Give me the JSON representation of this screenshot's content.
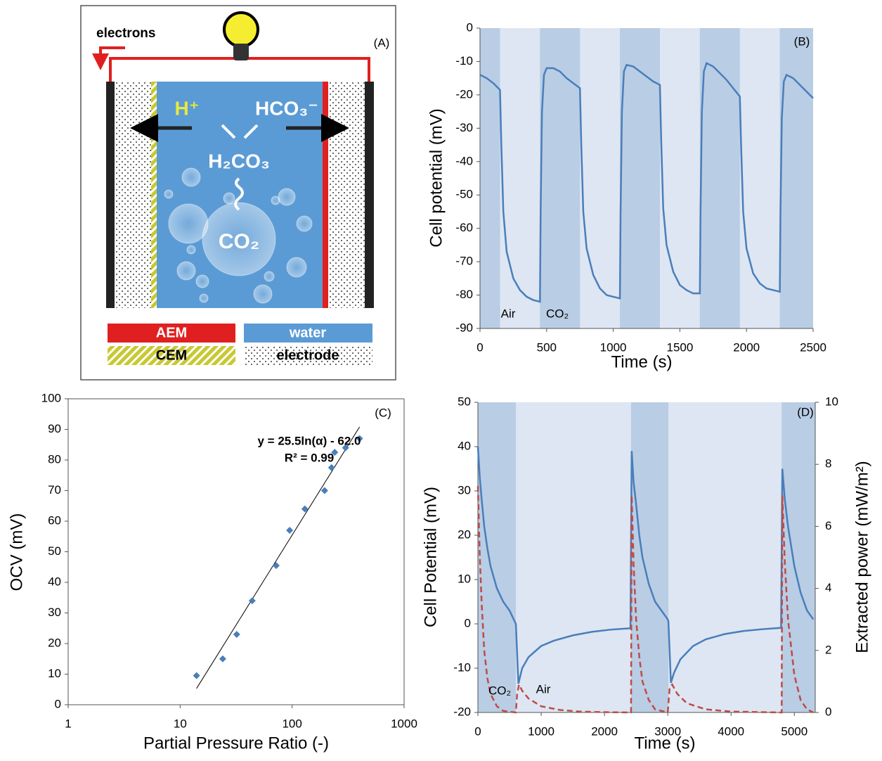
{
  "diagram": {
    "panel_label": "(A)",
    "electrons": "electrons",
    "proton": "H⁺",
    "bicarbonate": "HCO₃⁻",
    "carbonic_acid": "H₂CO₃",
    "co2": "CO₂",
    "legend": [
      "AEM",
      "water",
      "CEM",
      "electrode"
    ]
  },
  "chart_data": [
    {
      "type": "line",
      "panel_label": "(B)",
      "ylabel": "Cell potential (mV)",
      "xlabel": "Time (s)",
      "color": "#4a7ebb",
      "background": "#dde6f2",
      "shade_color": "#b9cde4",
      "shaded_ranges": [
        [
          0,
          150
        ],
        [
          450,
          750
        ],
        [
          1050,
          1350
        ],
        [
          1650,
          1950
        ],
        [
          2250,
          2500
        ]
      ],
      "annotations": [
        "Air",
        "CO₂"
      ],
      "xlim": [
        0,
        2500
      ],
      "xticks": [
        0,
        500,
        1000,
        1500,
        2000,
        2500
      ],
      "ylim": [
        -90,
        0
      ],
      "yticks": [
        -90,
        -80,
        -70,
        -60,
        -50,
        -40,
        -30,
        -20,
        -10,
        0
      ],
      "x": [
        0,
        50,
        100,
        150,
        160,
        175,
        200,
        250,
        300,
        350,
        400,
        450,
        455,
        465,
        480,
        500,
        550,
        600,
        650,
        700,
        750,
        760,
        775,
        800,
        850,
        900,
        950,
        1000,
        1050,
        1055,
        1065,
        1080,
        1100,
        1150,
        1200,
        1250,
        1300,
        1350,
        1360,
        1375,
        1400,
        1450,
        1500,
        1550,
        1600,
        1650,
        1655,
        1665,
        1680,
        1700,
        1750,
        1800,
        1850,
        1900,
        1950,
        1960,
        1975,
        2000,
        2050,
        2100,
        2150,
        2200,
        2250,
        2255,
        2265,
        2280,
        2300,
        2350,
        2400,
        2450,
        2500
      ],
      "values": [
        -14,
        -15,
        -16.5,
        -18.5,
        -35,
        -55,
        -67,
        -75,
        -78.5,
        -80.5,
        -81.5,
        -82,
        -55,
        -25,
        -14,
        -12,
        -12,
        -13,
        -15,
        -16.5,
        -18,
        -35,
        -55,
        -66,
        -74,
        -78,
        -80,
        -80.5,
        -81,
        -55,
        -25,
        -13,
        -11,
        -11.5,
        -13,
        -14.5,
        -16,
        -17,
        -34,
        -54,
        -65,
        -73,
        -77,
        -78.5,
        -79.5,
        -79.5,
        -55,
        -25,
        -13,
        -10.5,
        -11.5,
        -13.5,
        -15.5,
        -18,
        -20.5,
        -36,
        -55,
        -66,
        -73.5,
        -76.5,
        -78,
        -78.5,
        -79,
        -55,
        -27,
        -16,
        -14,
        -15,
        -17,
        -19,
        -21
      ]
    },
    {
      "type": "scatter",
      "panel_label": "(C)",
      "ylabel": "OCV (mV)",
      "xlabel": "Partial Pressure Ratio (-)",
      "color": "#4a7ebb",
      "log_x": true,
      "frame": true,
      "annotations": [
        "y = 25.5ln(α) - 62.0",
        "R² = 0.99"
      ],
      "xlim": [
        1,
        1000
      ],
      "xticks": [
        1,
        10,
        100,
        1000
      ],
      "ylim": [
        0,
        100
      ],
      "yticks": [
        0,
        10,
        20,
        30,
        40,
        50,
        60,
        70,
        80,
        90,
        100
      ],
      "x": [
        14,
        24,
        32,
        44,
        72,
        95,
        130,
        195,
        225,
        240,
        300,
        400
      ],
      "values": [
        9.5,
        15,
        23,
        34,
        45.5,
        57,
        64,
        70,
        77.5,
        82.5,
        84,
        87
      ],
      "trendline": {
        "color": "#000000",
        "x": [
          14,
          400
        ],
        "values": [
          5.3,
          90.8
        ]
      }
    },
    {
      "type": "line",
      "panel_label": "(D)",
      "ylabel": "Cell Potential (mV)",
      "y2label": "Extracted power (mW/m²)",
      "xlabel": "Time (s)",
      "background": "#dde6f2",
      "shade_color": "#b9cde4",
      "shaded_ranges": [
        [
          0,
          600
        ],
        [
          2420,
          3010
        ],
        [
          4800,
          5330
        ]
      ],
      "annotations": [
        "CO₂",
        "Air"
      ],
      "xlim": [
        0,
        5330
      ],
      "xticks": [
        0,
        1000,
        2000,
        3000,
        4000,
        5000
      ],
      "ylim": [
        -20,
        50
      ],
      "yticks": [
        -20,
        -10,
        0,
        10,
        20,
        30,
        40,
        50
      ],
      "y2lim": [
        0,
        10
      ],
      "y2ticks": [
        0,
        2,
        4,
        6,
        8,
        10
      ],
      "series": [
        {
          "color": "#4a7ebb",
          "x": [
            0,
            30,
            60,
            100,
            150,
            200,
            300,
            400,
            500,
            600,
            640,
            700,
            800,
            1000,
            1200,
            1500,
            1800,
            2100,
            2410,
            2430,
            2460,
            2500,
            2550,
            2600,
            2700,
            2800,
            2900,
            3000,
            3010,
            3050,
            3100,
            3200,
            3400,
            3600,
            3900,
            4200,
            4500,
            4790,
            4810,
            4850,
            4900,
            5000,
            5100,
            5200,
            5300
          ],
          "values": [
            40,
            33,
            28,
            22,
            17,
            13,
            8,
            5,
            3,
            0,
            -13.5,
            -10,
            -7.5,
            -5,
            -3.8,
            -2.6,
            -1.8,
            -1.3,
            -1,
            39,
            32,
            27,
            20,
            15,
            9,
            5,
            3,
            1,
            0.5,
            -13.3,
            -11,
            -8,
            -5,
            -3.5,
            -2.3,
            -1.6,
            -1.2,
            -0.9,
            35,
            28,
            22,
            13,
            7,
            3,
            1
          ]
        },
        {
          "color": "#be4b48",
          "line_style": "dashed",
          "axis": "y2",
          "x": [
            0,
            30,
            60,
            100,
            150,
            200,
            300,
            400,
            600,
            620,
            650,
            700,
            800,
            1000,
            1300,
            1600,
            2000,
            2420,
            2430,
            2460,
            2500,
            2550,
            2600,
            2700,
            2800,
            3000,
            3030,
            3070,
            3150,
            3300,
            3600,
            4000,
            4800,
            4810,
            4850,
            4900,
            5000,
            5100,
            5200,
            5300
          ],
          "values": [
            7.3,
            5,
            3.5,
            2,
            1.1,
            0.6,
            0.2,
            0.05,
            0,
            0.6,
            0.9,
            0.7,
            0.45,
            0.2,
            0.08,
            0.03,
            0.01,
            0,
            7,
            4.8,
            3,
            1.8,
            1,
            0.4,
            0.1,
            0,
            0.8,
            0.9,
            0.6,
            0.3,
            0.1,
            0.03,
            0,
            7,
            4.8,
            3,
            1.2,
            0.4,
            0.1,
            0
          ]
        }
      ]
    }
  ]
}
